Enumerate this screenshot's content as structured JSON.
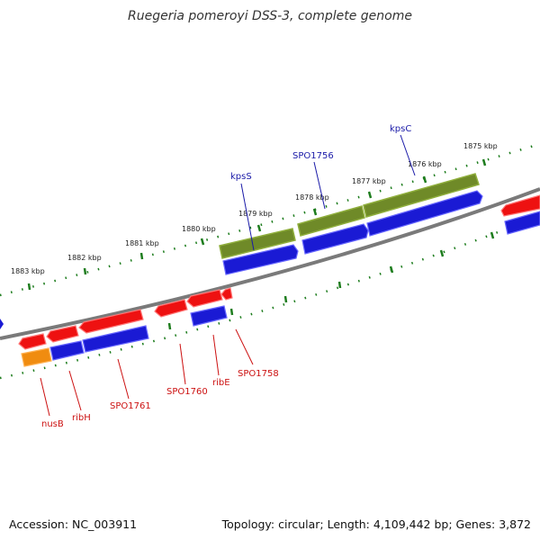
{
  "title": "Ruegeria pomeroyi DSS-3, complete genome",
  "footer": {
    "accession": "Accession: NC_003911",
    "stats": "Topology: circular; Length: 4,109,442 bp; Genes: 3,872"
  },
  "colors": {
    "backbone": "#7a7a7a",
    "forward_cds": "#ee1111",
    "reverse_cds": "#1a1ad4",
    "gene_feature": "#6f8a28",
    "special_cds": "#f08c10",
    "tick": "#1e7d1e",
    "label_upper": "#1a1aa8",
    "label_lower": "#cc1111"
  },
  "ruler_labels": [
    "1875 kbp",
    "1876 kbp",
    "1877 kbp",
    "1878 kbp",
    "1879 kbp",
    "1880 kbp",
    "1881 kbp",
    "1882 kbp",
    "1883 kbp"
  ],
  "upper_gene_labels": [
    "kpsC",
    "SPO1756",
    "kpsS"
  ],
  "lower_gene_labels": [
    "nusB",
    "ribH",
    "SPO1761",
    "SPO1760",
    "ribE",
    "SPO1758"
  ]
}
